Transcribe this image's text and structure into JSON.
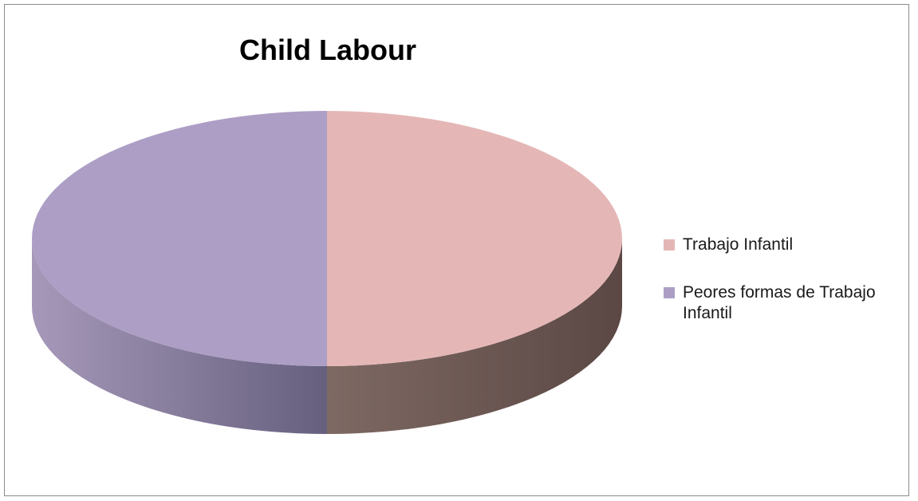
{
  "chart_data": {
    "type": "pie",
    "title": "Child Labour",
    "style": "3d",
    "legend_position": "right",
    "categories": [
      "Trabajo Infantil",
      "Peores formas de Trabajo Infantil"
    ],
    "values": [
      50,
      50
    ],
    "colors": [
      "#e4b7b6",
      "#ad9ec5"
    ]
  }
}
